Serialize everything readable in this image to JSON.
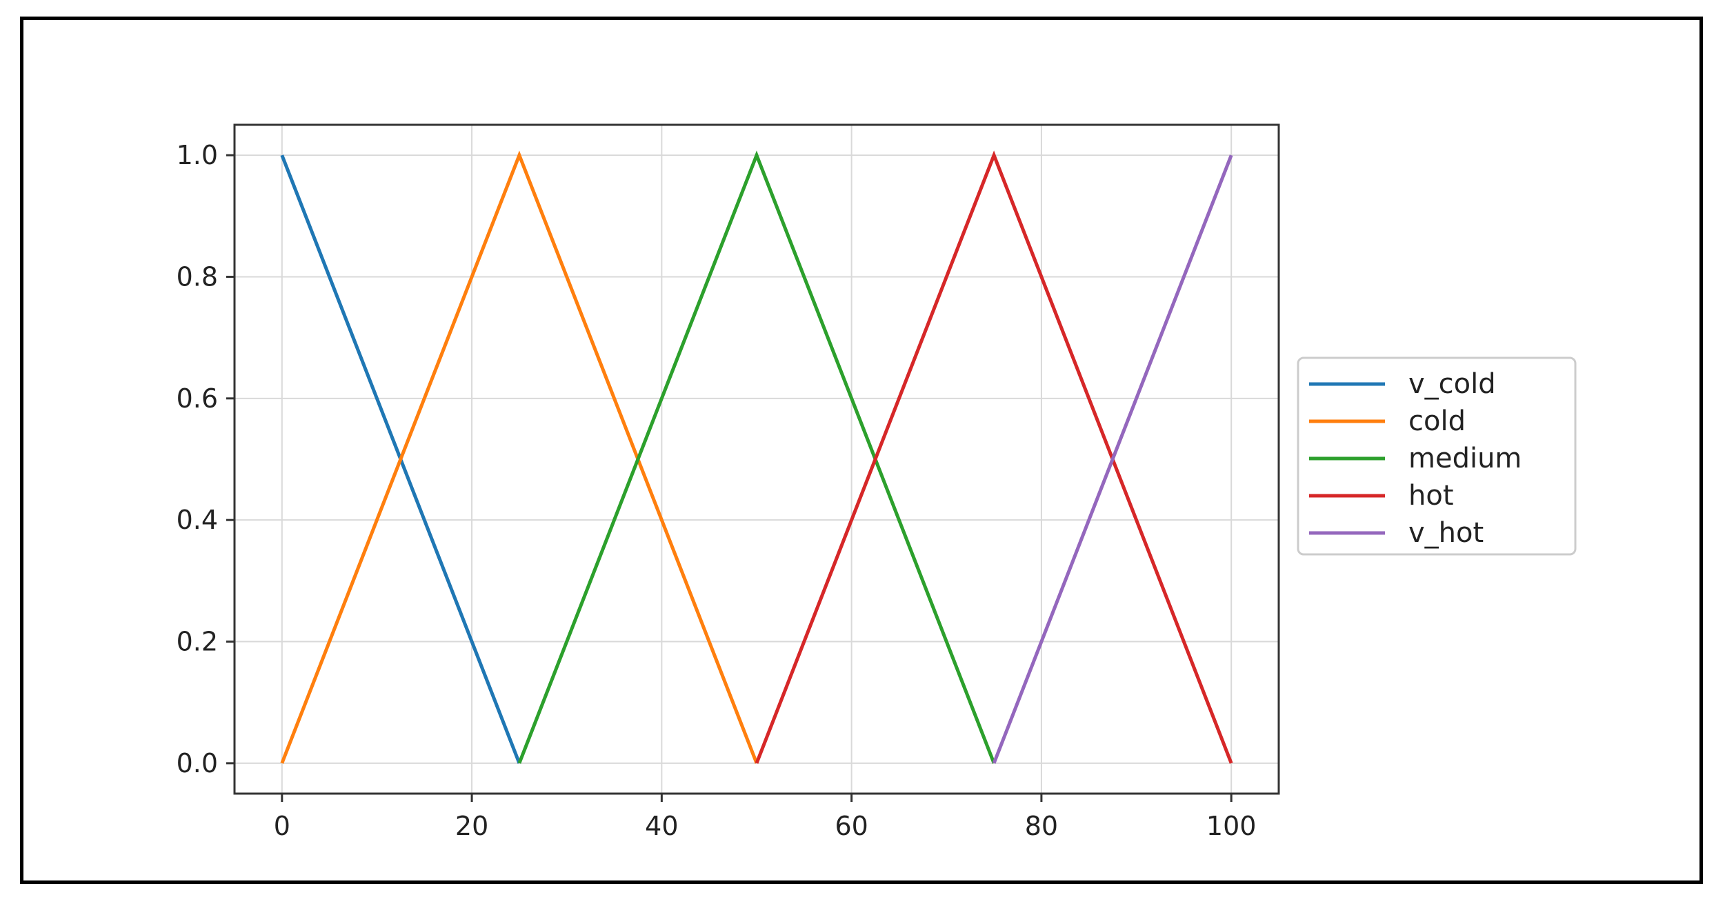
{
  "chart_data": {
    "type": "line",
    "title": "",
    "xlabel": "",
    "ylabel": "",
    "xlim": [
      -5,
      105
    ],
    "ylim": [
      -0.05,
      1.05
    ],
    "x_ticks": [
      0,
      20,
      40,
      60,
      80,
      100
    ],
    "y_ticks": [
      0.0,
      0.2,
      0.4,
      0.6,
      0.8,
      1.0
    ],
    "x_tick_labels": [
      "0",
      "20",
      "40",
      "60",
      "80",
      "100"
    ],
    "y_tick_labels": [
      "0.0",
      "0.2",
      "0.4",
      "0.6",
      "0.8",
      "1.0"
    ],
    "grid": true,
    "legend_position": "outside-right",
    "series": [
      {
        "name": "v_cold",
        "color": "#1f77b4",
        "x": [
          0,
          25
        ],
        "y": [
          1,
          0
        ]
      },
      {
        "name": "cold",
        "color": "#ff7f0e",
        "x": [
          0,
          25,
          50
        ],
        "y": [
          0,
          1,
          0
        ]
      },
      {
        "name": "medium",
        "color": "#2ca02c",
        "x": [
          25,
          50,
          75
        ],
        "y": [
          0,
          1,
          0
        ]
      },
      {
        "name": "hot",
        "color": "#d62728",
        "x": [
          50,
          75,
          100
        ],
        "y": [
          0,
          1,
          0
        ]
      },
      {
        "name": "v_hot",
        "color": "#9467bd",
        "x": [
          75,
          100
        ],
        "y": [
          0,
          1
        ]
      }
    ]
  }
}
